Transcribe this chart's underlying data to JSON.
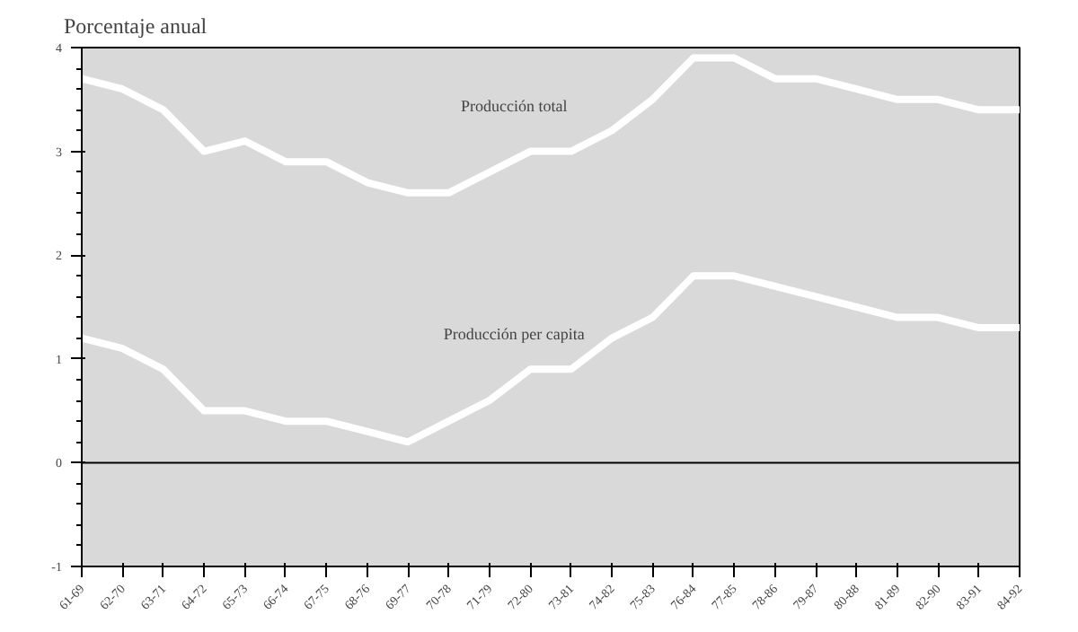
{
  "chart_data": {
    "type": "line",
    "title": "Porcentaje anual",
    "categories": [
      "61-69",
      "62-70",
      "63-71",
      "64-72",
      "65-73",
      "66-74",
      "67-75",
      "68-76",
      "69-77",
      "70-78",
      "71-79",
      "72-80",
      "73-81",
      "74-82",
      "75-83",
      "76-84",
      "77-85",
      "78-86",
      "79-87",
      "80-88",
      "81-89",
      "82-90",
      "83-91",
      "84-92"
    ],
    "series": [
      {
        "name": "Producción total",
        "color": "#ffffff",
        "values": [
          3.7,
          3.6,
          3.4,
          3.0,
          3.1,
          2.9,
          2.9,
          2.7,
          2.6,
          2.6,
          2.8,
          3.0,
          3.0,
          3.2,
          3.5,
          3.9,
          3.9,
          3.7,
          3.7,
          3.6,
          3.5,
          3.5,
          3.4,
          3.4
        ]
      },
      {
        "name": "Producción per capita",
        "color": "#ffffff",
        "values": [
          1.2,
          1.1,
          0.9,
          0.5,
          0.5,
          0.4,
          0.4,
          0.3,
          0.2,
          0.4,
          0.6,
          0.9,
          0.9,
          1.2,
          1.4,
          1.8,
          1.8,
          1.7,
          1.6,
          1.5,
          1.4,
          1.4,
          1.3,
          1.3
        ]
      }
    ],
    "ylim": [
      -1,
      4
    ],
    "yticks": [
      -1,
      0,
      1,
      2,
      3,
      4
    ],
    "ref_lines": [
      {
        "axis": "y",
        "value": 0,
        "color": "#000000"
      }
    ],
    "grid": false,
    "marker": "none",
    "line_style": "solid"
  }
}
